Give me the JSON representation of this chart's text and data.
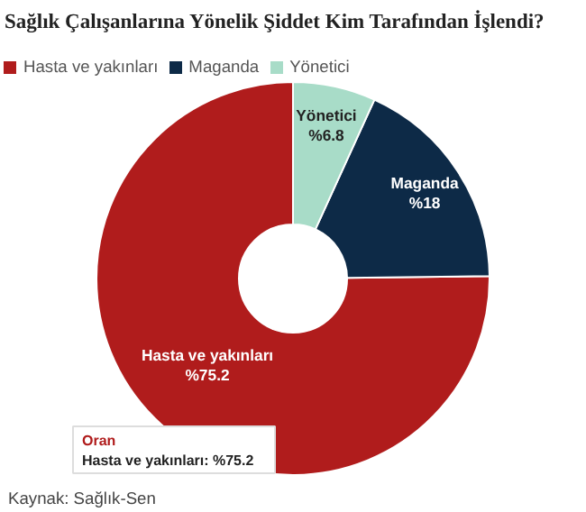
{
  "chart_data": {
    "type": "donut",
    "title": "Sağlık Çalışanlarına Yönelik Şiddet Kim Tarafından İşlendi?",
    "categories": [
      "Hasta ve yakınları",
      "Maganda",
      "Yönetici"
    ],
    "values": [
      75.2,
      18,
      6.8
    ],
    "value_labels": [
      "%75.2",
      "%18",
      "%6.8"
    ],
    "colors": [
      "#b01c1c",
      "#0d2a47",
      "#a8dcc8"
    ],
    "legend": "top left",
    "annotations": [
      "Oran",
      "Hasta ve yakınları: %75.2",
      "Kaynak: Sağlık-Sen"
    ]
  }
}
